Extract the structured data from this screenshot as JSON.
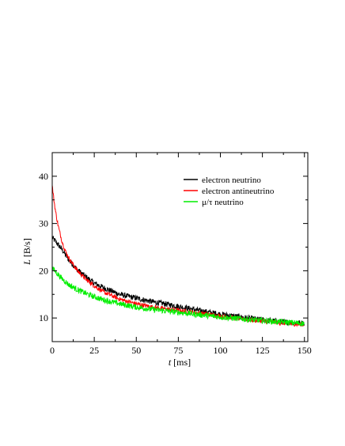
{
  "chart_data": {
    "type": "line",
    "title": "",
    "xlabel": {
      "symbol": "t",
      "unit": "[ms]"
    },
    "ylabel": {
      "symbol": "L",
      "unit": "[B/s]"
    },
    "xlim": [
      0,
      152
    ],
    "ylim": [
      5,
      45
    ],
    "xticks": [
      0,
      25,
      50,
      75,
      100,
      125,
      150
    ],
    "yticks": [
      10,
      20,
      30,
      40
    ],
    "grid": false,
    "legend_position": "top-right",
    "series": [
      {
        "name": "electron neutrino",
        "color": "#000000",
        "x": [
          0,
          2,
          4,
          6,
          8,
          10,
          15,
          20,
          25,
          30,
          40,
          50,
          60,
          70,
          80,
          90,
          100,
          110,
          120,
          130,
          140,
          150
        ],
        "y": [
          27.0,
          26.2,
          25.3,
          24.4,
          23.3,
          22.2,
          20.2,
          18.7,
          17.4,
          16.5,
          15.0,
          14.2,
          13.4,
          12.8,
          12.1,
          11.4,
          10.8,
          10.3,
          9.8,
          9.4,
          9.1,
          8.9
        ]
      },
      {
        "name": "electron antineutrino",
        "color": "#ff0000",
        "x": [
          0,
          1,
          2,
          3,
          4,
          6,
          8,
          10,
          15,
          20,
          25,
          30,
          40,
          50,
          60,
          70,
          80,
          90,
          100,
          110,
          120,
          130,
          140,
          150
        ],
        "y": [
          38.0,
          35.0,
          32.5,
          30.5,
          28.8,
          26.0,
          24.0,
          22.6,
          20.0,
          18.2,
          16.8,
          15.6,
          14.0,
          13.0,
          12.3,
          11.8,
          11.4,
          10.9,
          10.4,
          9.9,
          9.5,
          9.2,
          8.8,
          8.6
        ]
      },
      {
        "name": "μ/τ neutrino",
        "color": "#00ee00",
        "x": [
          0,
          2,
          5,
          10,
          15,
          20,
          25,
          30,
          40,
          50,
          60,
          70,
          80,
          90,
          100,
          110,
          120,
          130,
          140,
          150
        ],
        "y": [
          20.6,
          19.8,
          18.6,
          17.0,
          16.0,
          15.2,
          14.5,
          13.9,
          13.0,
          12.3,
          11.8,
          11.4,
          11.0,
          10.6,
          10.2,
          9.9,
          9.6,
          9.3,
          9.1,
          8.8
        ]
      }
    ]
  }
}
